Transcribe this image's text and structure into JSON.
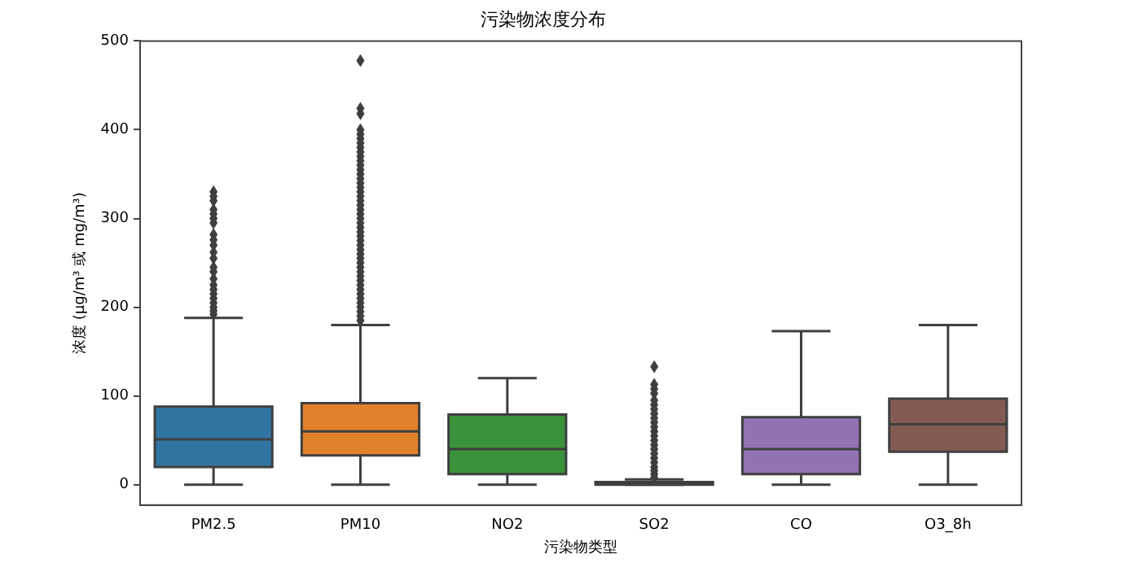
{
  "chart_data": {
    "type": "box",
    "title": "污染物浓度分布",
    "xlabel": "污染物类型",
    "ylabel": "浓度 (μg/m³ 或 mg/m³)",
    "categories": [
      "PM2.5",
      "PM10",
      "NO2",
      "SO2",
      "CO",
      "O3_8h"
    ],
    "colors": [
      "#3274a1",
      "#e1812c",
      "#3a923a",
      "#c03d3e",
      "#9372b2",
      "#845b53"
    ],
    "boxes": [
      {
        "low": 0,
        "q1": 20,
        "median": 51,
        "q3": 88,
        "high": 188,
        "outliers": [
          192,
          196,
          200,
          205,
          210,
          215,
          220,
          225,
          232,
          240,
          245,
          255,
          262,
          270,
          276,
          282,
          295,
          300,
          305,
          310,
          320,
          325,
          330
        ]
      },
      {
        "low": 0,
        "q1": 33,
        "median": 60,
        "q3": 92,
        "high": 180,
        "outliers": [
          185,
          190,
          195,
          200,
          205,
          210,
          215,
          220,
          225,
          230,
          235,
          240,
          245,
          250,
          255,
          260,
          265,
          270,
          275,
          280,
          285,
          290,
          295,
          300,
          305,
          310,
          315,
          320,
          325,
          330,
          335,
          340,
          345,
          350,
          355,
          360,
          365,
          370,
          375,
          380,
          385,
          390,
          395,
          400,
          418,
          424,
          478
        ]
      },
      {
        "low": 0,
        "q1": 12,
        "median": 40,
        "q3": 79,
        "high": 120
      },
      {
        "low": 0,
        "q1": 0,
        "median": 1,
        "q3": 3,
        "high": 6,
        "outliers": [
          8,
          12,
          16,
          20,
          25,
          30,
          35,
          40,
          45,
          50,
          55,
          60,
          65,
          70,
          75,
          80,
          85,
          90,
          95,
          103,
          108,
          113,
          133
        ]
      },
      {
        "low": 0,
        "q1": 12,
        "median": 40,
        "q3": 76,
        "high": 173
      },
      {
        "low": 0,
        "q1": 37,
        "median": 68,
        "q3": 97,
        "high": 180
      }
    ],
    "ylim": [
      -23,
      500
    ],
    "yticks": [
      0,
      100,
      200,
      300,
      400,
      500
    ],
    "grid": false,
    "legend": false,
    "marker": "diamond"
  }
}
